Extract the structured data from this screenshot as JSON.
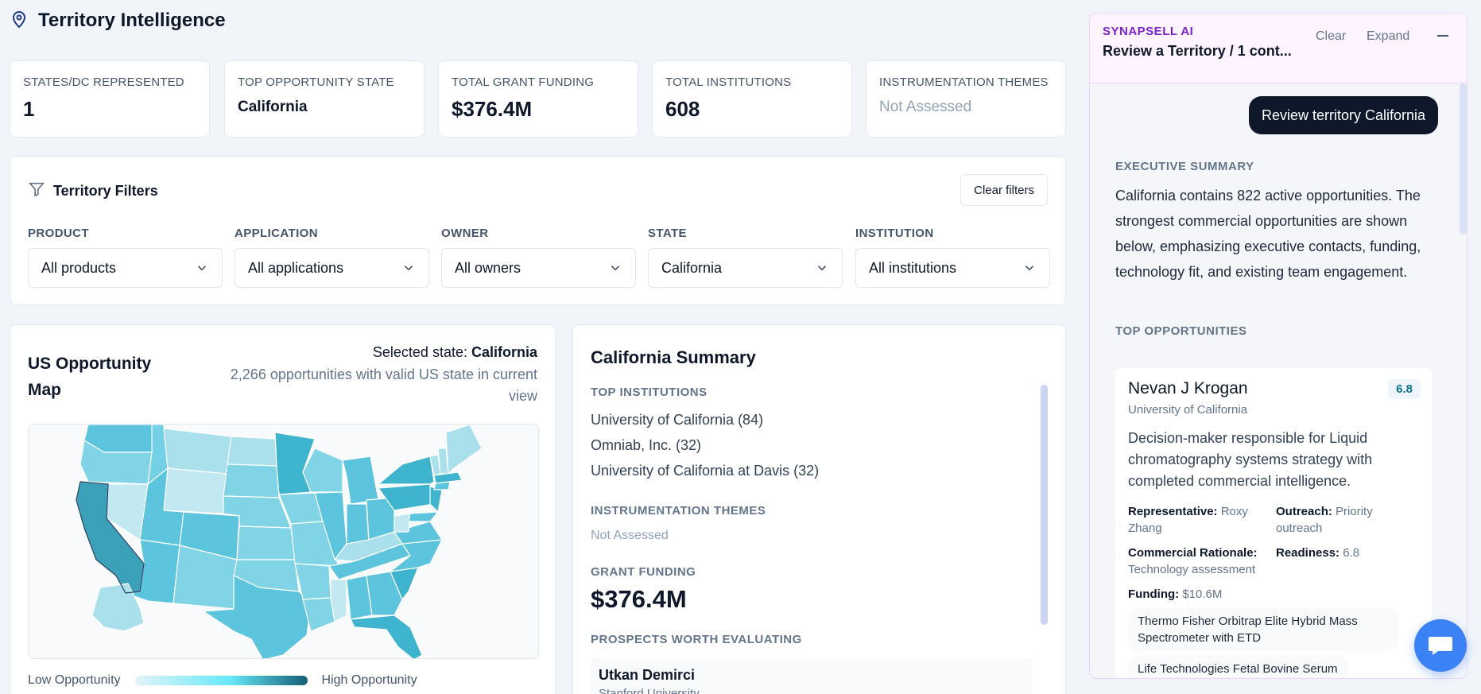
{
  "header": {
    "title": "Territory Intelligence"
  },
  "kpis": [
    {
      "label": "STATES/DC REPRESENTED",
      "value": "1"
    },
    {
      "label": "TOP OPPORTUNITY STATE",
      "value": "California"
    },
    {
      "label": "TOTAL GRANT FUNDING",
      "value": "$376.4M"
    },
    {
      "label": "TOTAL INSTITUTIONS",
      "value": "608"
    },
    {
      "label": "INSTRUMENTATION THEMES",
      "value": "Not Assessed"
    }
  ],
  "filters": {
    "title": "Territory Filters",
    "clear_label": "Clear filters",
    "groups": [
      {
        "label": "PRODUCT",
        "value": "All products"
      },
      {
        "label": "APPLICATION",
        "value": "All applications"
      },
      {
        "label": "OWNER",
        "value": "All owners"
      },
      {
        "label": "STATE",
        "value": "California"
      },
      {
        "label": "INSTITUTION",
        "value": "All institutions"
      }
    ]
  },
  "map": {
    "title": "US Opportunity Map",
    "selected_label": "Selected state:",
    "selected_state": "California",
    "subtitle": "2,266 opportunities with valid US state in current view",
    "legend_low": "Low Opportunity",
    "legend_high": "High Opportunity",
    "colors": {
      "low": "#e2f4f8",
      "mid": "#67e8f9",
      "high": "#155e75"
    }
  },
  "summary": {
    "title": "California Summary",
    "top_institutions_label": "TOP INSTITUTIONS",
    "institutions": [
      "University of California (84)",
      "Omniab, Inc. (32)",
      "University of California at Davis (32)"
    ],
    "themes_label": "INSTRUMENTATION THEMES",
    "themes_value": "Not Assessed",
    "grant_label": "GRANT FUNDING",
    "grant_value": "$376.4M",
    "prospects_label": "PROSPECTS WORTH EVALUATING",
    "prospect_name": "Utkan Demirci",
    "prospect_org": "Stanford University"
  },
  "ai": {
    "brand": "SYNAPSELL AI",
    "subtitle": "Review a Territory / 1 cont...",
    "clear": "Clear",
    "expand": "Expand",
    "user_message": "Review territory California",
    "exec_label": "EXECUTIVE SUMMARY",
    "exec_text": "California contains 822 active opportunities. The strongest commercial opportunities are shown below, emphasizing executive contacts, funding, technology fit, and existing team engagement.",
    "top_opps_label": "TOP OPPORTUNITIES",
    "opp": {
      "name": "Nevan J Krogan",
      "score": "6.8",
      "org": "University of California",
      "desc": "Decision-maker responsible for Liquid chromatography systems strategy with completed commercial intelligence.",
      "rep_label": "Representative:",
      "rep_value": "Roxy Zhang",
      "outreach_label": "Outreach:",
      "outreach_value": "Priority outreach",
      "rationale_label": "Commercial Rationale:",
      "rationale_value": "Technology assessment",
      "readiness_label": "Readiness:",
      "readiness_value": "6.8",
      "funding_label": "Funding:",
      "funding_value": "$10.6M",
      "products": [
        "Thermo Fisher Orbitrap Elite Hybrid Mass Spectrometer with ETD",
        "Life Technologies Fetal Bovine Serum"
      ]
    }
  }
}
